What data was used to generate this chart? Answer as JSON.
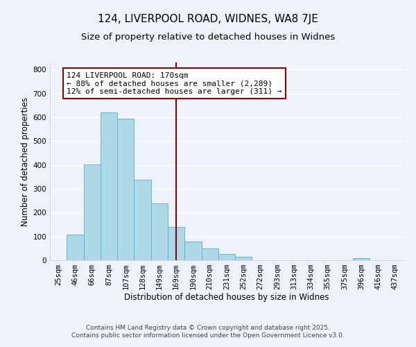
{
  "title": "124, LIVERPOOL ROAD, WIDNES, WA8 7JE",
  "subtitle": "Size of property relative to detached houses in Widnes",
  "xlabel": "Distribution of detached houses by size in Widnes",
  "ylabel": "Number of detached properties",
  "categories": [
    "25sqm",
    "46sqm",
    "66sqm",
    "87sqm",
    "107sqm",
    "128sqm",
    "149sqm",
    "169sqm",
    "190sqm",
    "210sqm",
    "231sqm",
    "252sqm",
    "272sqm",
    "293sqm",
    "313sqm",
    "334sqm",
    "355sqm",
    "375sqm",
    "396sqm",
    "416sqm",
    "437sqm"
  ],
  "values": [
    0,
    108,
    403,
    620,
    595,
    338,
    238,
    140,
    78,
    50,
    26,
    15,
    0,
    0,
    0,
    0,
    0,
    0,
    8,
    0,
    0
  ],
  "bar_color": "#add8e6",
  "bar_edge_color": "#6ab0d4",
  "property_line_x": 7,
  "property_line_color": "#8b0000",
  "annotation_text": "124 LIVERPOOL ROAD: 170sqm\n← 88% of detached houses are smaller (2,289)\n12% of semi-detached houses are larger (311) →",
  "annotation_box_color": "#ffffff",
  "annotation_box_edge_color": "#8b0000",
  "ylim": [
    0,
    830
  ],
  "yticks": [
    0,
    100,
    200,
    300,
    400,
    500,
    600,
    700,
    800
  ],
  "footer_line1": "Contains HM Land Registry data © Crown copyright and database right 2025.",
  "footer_line2": "Contains public sector information licensed under the Open Government Licence v3.0.",
  "bg_color": "#eef2fa",
  "grid_color": "#ffffff",
  "title_fontsize": 11,
  "subtitle_fontsize": 9.5,
  "label_fontsize": 8.5,
  "tick_fontsize": 7.5,
  "annotation_fontsize": 8,
  "footer_fontsize": 6.5
}
